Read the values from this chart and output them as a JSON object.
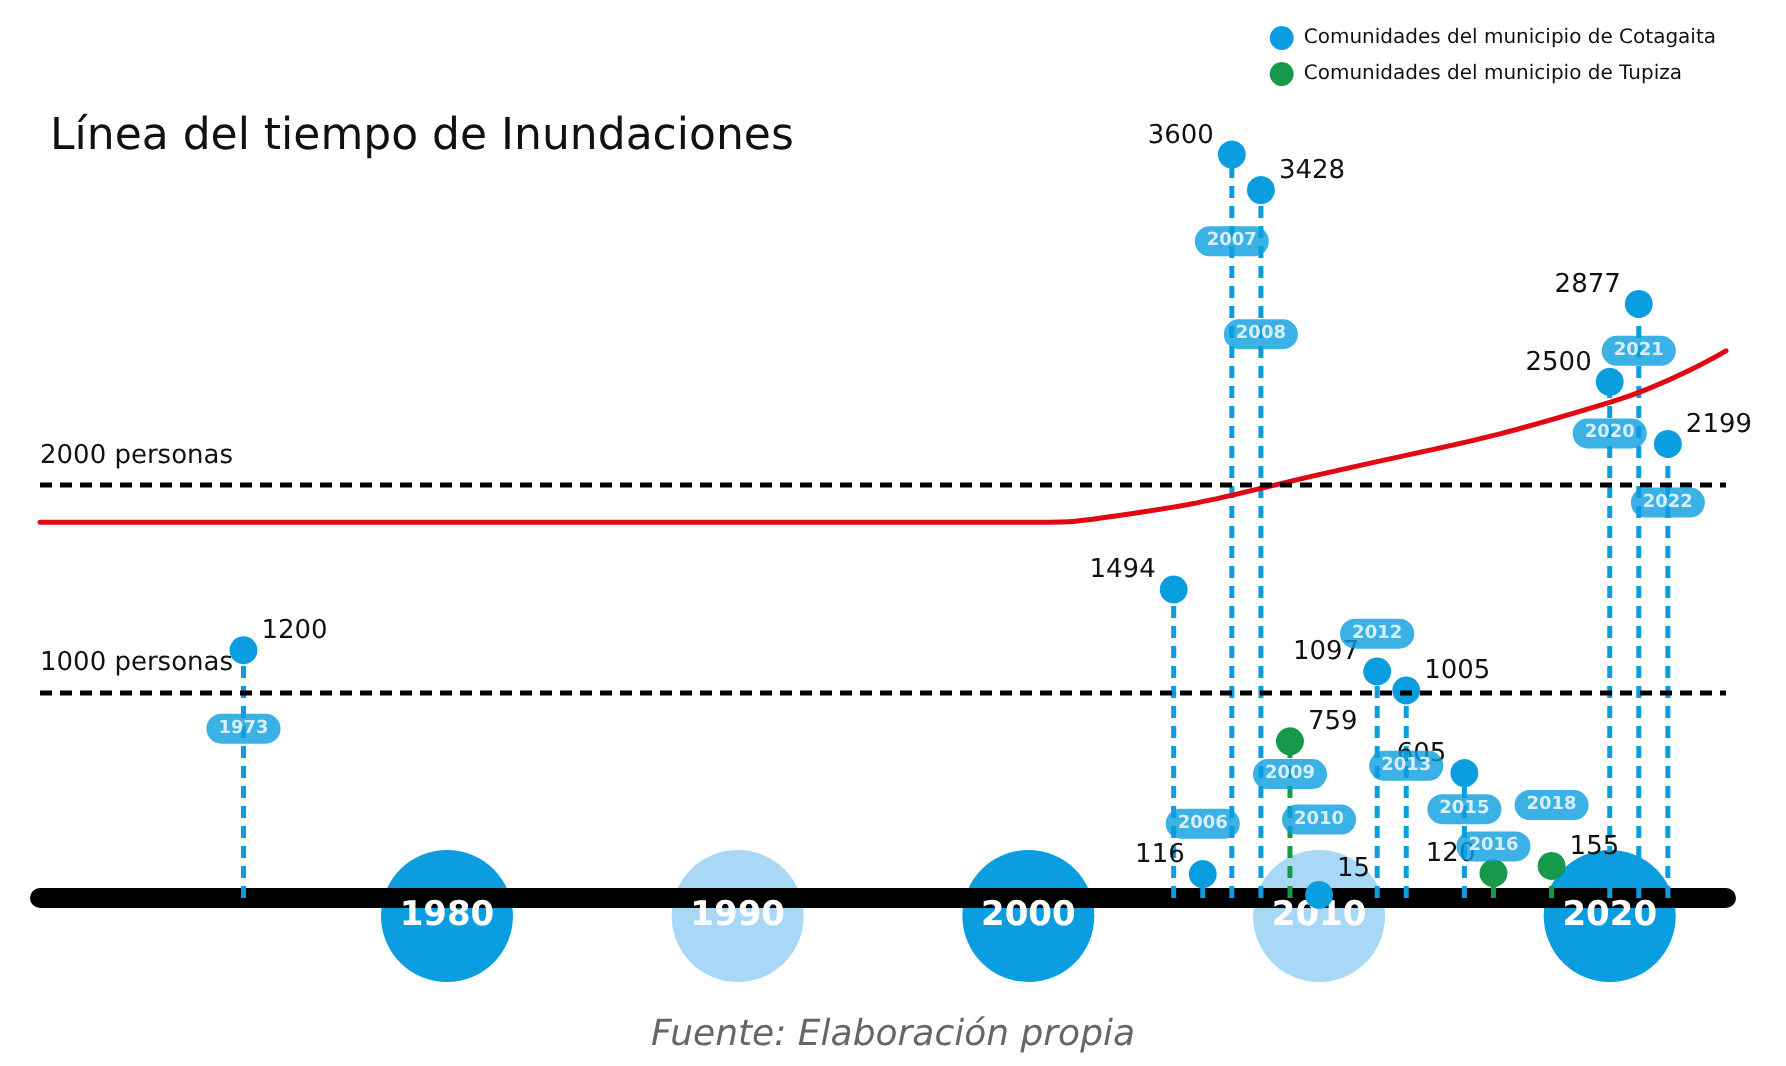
{
  "chart_data": {
    "type": "lollipop",
    "title": "Línea del tiempo de Inundaciones",
    "xlim": [
      1966,
      2024
    ],
    "xticks": [
      1980,
      1990,
      2000,
      2010,
      2020
    ],
    "tick_labels": "x",
    "series": [
      {
        "name": "Comunidades del municipio de Cotagaita",
        "color": "#0a9ee0",
        "x": [
          1973,
          2005,
          2006,
          2007,
          2008,
          2010,
          2012,
          2013,
          2015,
          2020,
          2021,
          2022
        ],
        "values": [
          1200,
          1494,
          116,
          3600,
          3428,
          15,
          1097,
          1005,
          605,
          2500,
          2877,
          2199
        ],
        "value_labels": [
          "1200",
          "1494",
          "116",
          "3600",
          "3428",
          "15",
          "1097",
          "1005",
          "605",
          "2500",
          "2877",
          "2199"
        ]
      },
      {
        "name": "Comunidades del municipio de Tupiza",
        "color": "#16994a",
        "x": [
          2009,
          2016,
          2018
        ],
        "values": [
          759,
          120,
          155
        ],
        "value_labels": [
          "759",
          "120",
          "155"
        ]
      },
      {
        "type": "line",
        "color": "#e30613",
        "marker": "none",
        "line_style": "solid",
        "x": [
          1966,
          2000,
          2003,
          2010,
          2020,
          2024
        ],
        "values": [
          1820,
          1820,
          1850,
          2050,
          2400,
          2650
        ]
      }
    ],
    "marker": "circle",
    "line_style": "dashed",
    "grid": false,
    "legend": "top right",
    "ref_lines": [
      {
        "axis": "y",
        "value": 1000,
        "label": "1000 personas",
        "line_style": "dashed",
        "color": "#000000"
      },
      {
        "axis": "y",
        "value": 2000,
        "label": "2000 personas",
        "line_style": "dashed",
        "color": "#000000"
      }
    ],
    "annotations": [
      {
        "text": "1973",
        "x": 1973,
        "y": 820
      },
      {
        "text": "2006",
        "x": 2006,
        "y": 360
      },
      {
        "text": "2007",
        "x": 2007,
        "y": 3180
      },
      {
        "text": "2008",
        "x": 2008,
        "y": 2730
      },
      {
        "text": "2009",
        "x": 2009,
        "y": 600
      },
      {
        "text": "2010",
        "x": 2010,
        "y": 380
      },
      {
        "text": "2012",
        "x": 2012,
        "y": 1280
      },
      {
        "text": "2013",
        "x": 2013,
        "y": 640
      },
      {
        "text": "2015",
        "x": 2015,
        "y": 430
      },
      {
        "text": "2016",
        "x": 2016,
        "y": 250
      },
      {
        "text": "2018",
        "x": 2018,
        "y": 450
      },
      {
        "text": "2020",
        "x": 2020,
        "y": 2250
      },
      {
        "text": "2021",
        "x": 2021,
        "y": 2650
      },
      {
        "text": "2022",
        "x": 2022,
        "y": 1915
      },
      "Fuente: Elaboración propia"
    ]
  }
}
